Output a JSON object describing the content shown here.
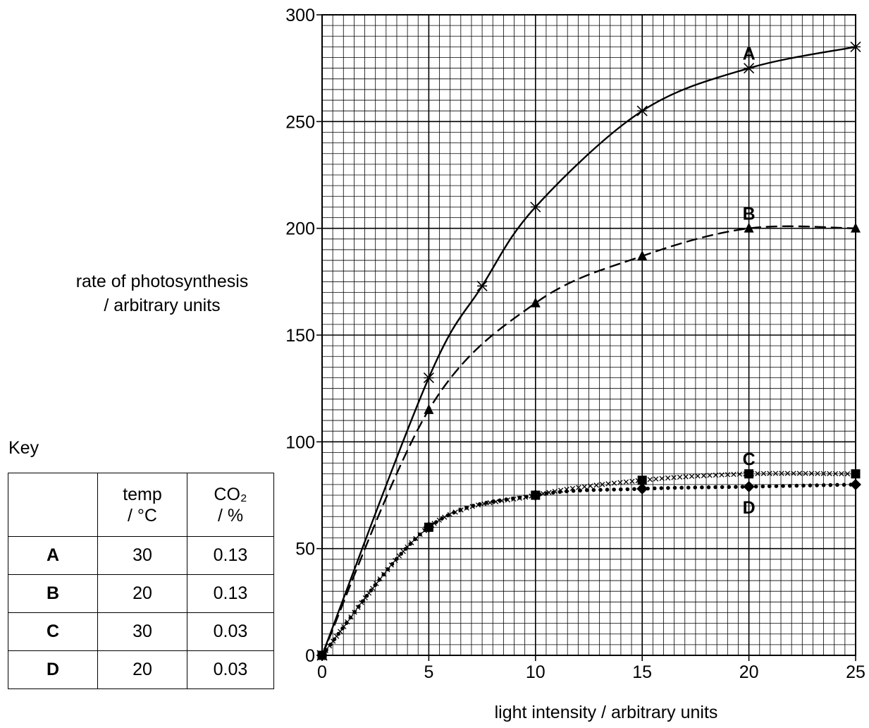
{
  "chart_data": {
    "type": "line",
    "xlabel": "light intensity / arbitrary units",
    "ylabel_lines": [
      "rate of photosynthesis",
      "/ arbitrary units"
    ],
    "xlim": [
      0,
      25
    ],
    "ylim": [
      0,
      300
    ],
    "x_ticks": [
      "0",
      "5",
      "10",
      "15",
      "20",
      "25"
    ],
    "y_ticks": [
      "0",
      "50",
      "100",
      "150",
      "200",
      "250",
      "300"
    ],
    "grid": true,
    "series": [
      {
        "name": "A",
        "marker": "asterisk",
        "line": "solid",
        "x": [
          0,
          5,
          7.5,
          10,
          15,
          20,
          25
        ],
        "y": [
          0,
          130,
          173,
          210,
          255,
          275,
          285
        ]
      },
      {
        "name": "B",
        "marker": "triangle",
        "line": "dashed",
        "x": [
          0,
          5,
          10,
          15,
          20,
          25
        ],
        "y": [
          0,
          115,
          165,
          187,
          200,
          200
        ]
      },
      {
        "name": "C",
        "marker": "square",
        "line": "crosses",
        "x": [
          0,
          5,
          10,
          15,
          20,
          25
        ],
        "y": [
          0,
          60,
          75,
          82,
          85,
          85
        ]
      },
      {
        "name": "D",
        "marker": "diamond",
        "line": "dotted",
        "x": [
          0,
          5,
          10,
          15,
          20,
          25
        ],
        "y": [
          0,
          60,
          75,
          78,
          79,
          80
        ]
      }
    ]
  },
  "key": {
    "title": "Key",
    "header": {
      "temp_line1": "temp",
      "temp_line2": "/ °C",
      "co2_line1": "CO₂",
      "co2_line2": "/ %"
    },
    "rows": [
      {
        "label": "A",
        "temp": "30",
        "co2": "0.13"
      },
      {
        "label": "B",
        "temp": "20",
        "co2": "0.13"
      },
      {
        "label": "C",
        "temp": "30",
        "co2": "0.03"
      },
      {
        "label": "D",
        "temp": "20",
        "co2": "0.03"
      }
    ]
  }
}
